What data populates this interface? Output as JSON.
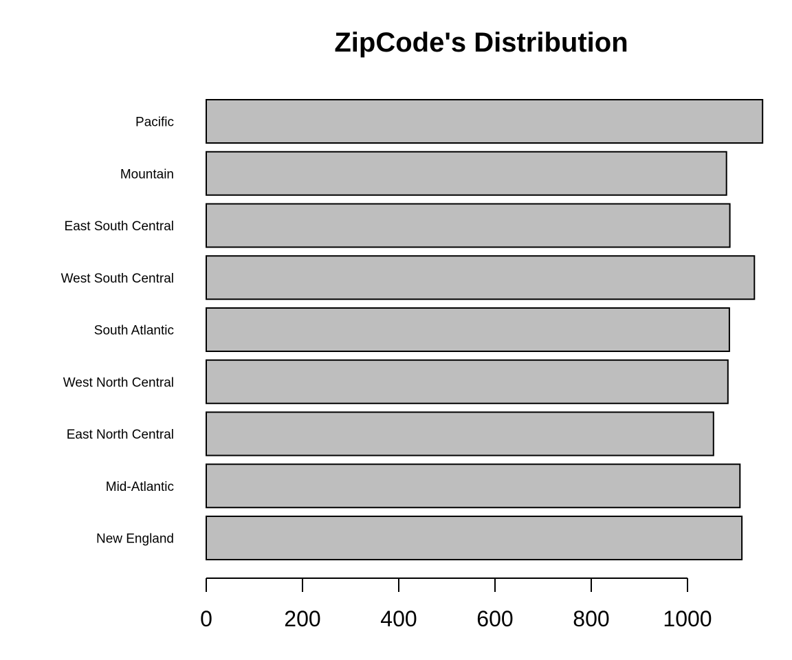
{
  "chart_data": {
    "type": "bar",
    "orientation": "horizontal",
    "title": "ZipCode's Distribution",
    "xlabel": "",
    "ylabel": "",
    "categories": [
      "New England",
      "Mid-Atlantic",
      "East North Central",
      "West North Central",
      "South Atlantic",
      "West South Central",
      "East South Central",
      "Mountain",
      "Pacific"
    ],
    "values": [
      1113,
      1109,
      1054,
      1084,
      1087,
      1139,
      1088,
      1081,
      1156
    ],
    "x_ticks": [
      0,
      200,
      400,
      600,
      800,
      1000
    ],
    "xlim": [
      0,
      1156
    ],
    "grid": false,
    "legend": "none",
    "bar_color": "#bebebe",
    "border_color": "#000000"
  }
}
